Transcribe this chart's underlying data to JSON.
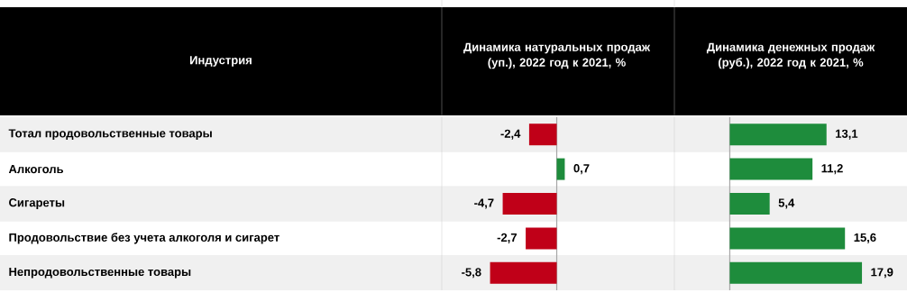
{
  "chart_data": [
    {
      "type": "bar",
      "orientation": "horizontal",
      "title": "Динамика натуральных продаж (уп.), 2022 год к 2021, %",
      "ylabel": "Индустрия",
      "categories": [
        "Тотал продовольственные товары",
        "Алкоголь",
        "Сигареты",
        "Продовольствие без учета алкоголя и сигарет",
        "Непродовольственные товары"
      ],
      "values": [
        -2.4,
        0.7,
        -4.7,
        -2.7,
        -5.8
      ],
      "colors": [
        "#c00018",
        "#1e8c3c",
        "#c00018",
        "#c00018",
        "#c00018"
      ],
      "value_labels": [
        "-2,4",
        "0,7",
        "-4,7",
        "-2,7",
        "-5,8"
      ],
      "xlim": [
        -10,
        10
      ],
      "tick_labels": "y"
    },
    {
      "type": "bar",
      "orientation": "horizontal",
      "title": "Динамика денежных продаж (руб.), 2022 год к 2021, %",
      "categories": [
        null,
        null,
        null,
        null,
        null
      ],
      "values": [
        13.1,
        11.2,
        5.4,
        15.6,
        17.9
      ],
      "color": "#1e8c3c",
      "value_labels": [
        "13,1",
        "11,2",
        "5,4",
        "15,6",
        "17,9"
      ],
      "xlim": [
        -7.5,
        24
      ],
      "tick_labels": false
    }
  ]
}
